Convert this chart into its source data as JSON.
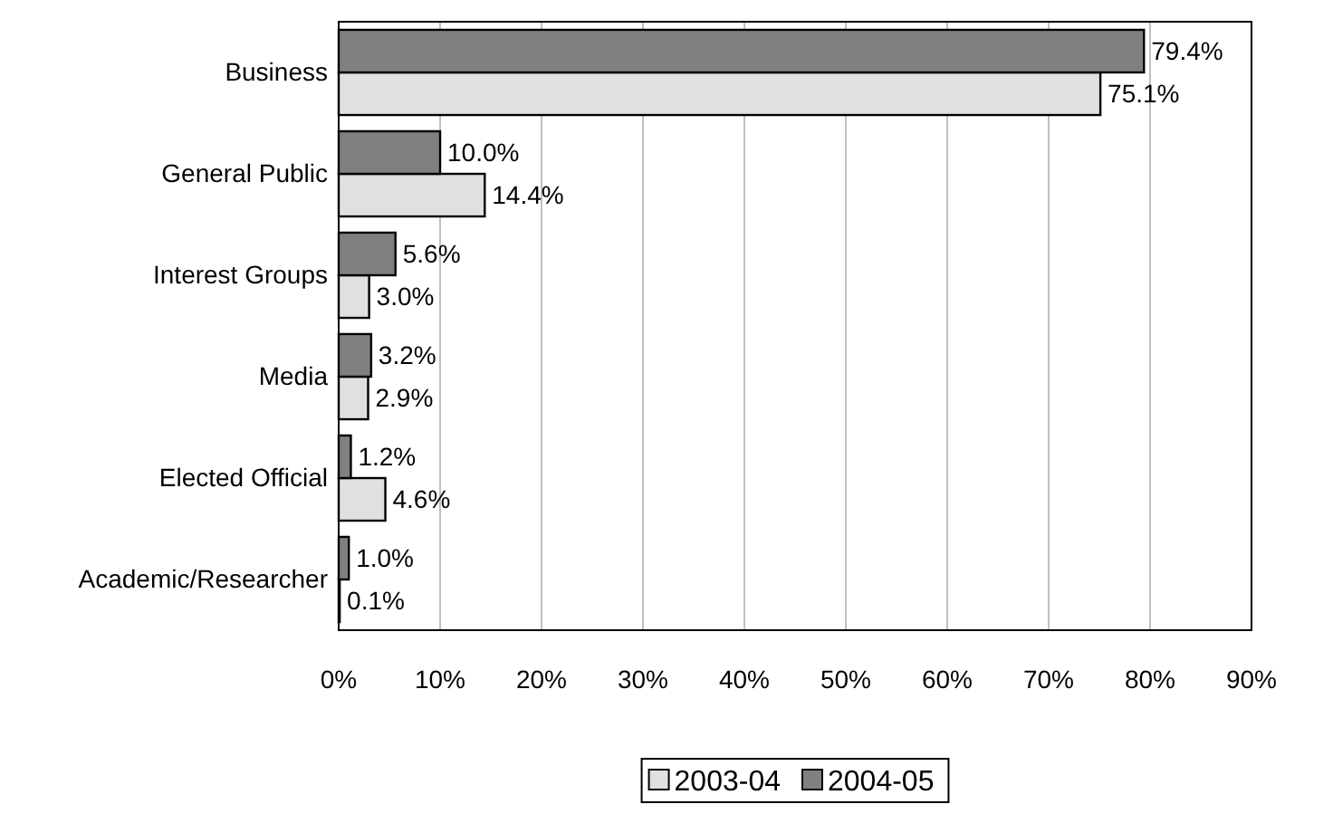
{
  "chart_data": {
    "type": "bar",
    "orientation": "horizontal",
    "categories": [
      "Business",
      "General Public",
      "Interest Groups",
      "Media",
      "Elected Official",
      "Academic/Researcher"
    ],
    "series": [
      {
        "name": "2003-04",
        "color": "#e0e0e0",
        "values": [
          75.1,
          14.4,
          3.0,
          2.9,
          4.6,
          0.1
        ],
        "value_labels": [
          "75.1%",
          "14.4%",
          "3.0%",
          "2.9%",
          "4.6%",
          "0.1%"
        ]
      },
      {
        "name": "2004-05",
        "color": "#808080",
        "values": [
          79.4,
          10.0,
          5.6,
          3.2,
          1.2,
          1.0
        ],
        "value_labels": [
          "79.4%",
          "10.0%",
          "5.6%",
          "3.2%",
          "1.2%",
          "1.0%"
        ]
      }
    ],
    "xlim": [
      0,
      90
    ],
    "xticks": [
      {
        "value": 0,
        "label": "0%"
      },
      {
        "value": 10,
        "label": "10%"
      },
      {
        "value": 20,
        "label": "20%"
      },
      {
        "value": 30,
        "label": "30%"
      },
      {
        "value": 40,
        "label": "40%"
      },
      {
        "value": 50,
        "label": "50%"
      },
      {
        "value": 60,
        "label": "60%"
      },
      {
        "value": 70,
        "label": "70%"
      },
      {
        "value": 80,
        "label": "80%"
      },
      {
        "value": 90,
        "label": "90%"
      }
    ],
    "grid": "x",
    "legend": "bottom"
  }
}
